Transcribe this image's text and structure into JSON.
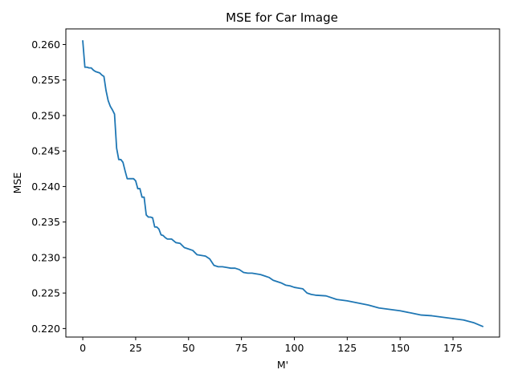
{
  "chart_data": {
    "type": "line",
    "title": "MSE for Car Image",
    "xlabel": "M'",
    "ylabel": "MSE",
    "xlim": [
      -8,
      197
    ],
    "ylim": [
      0.2188,
      0.2622
    ],
    "xticks": [
      0,
      25,
      50,
      75,
      100,
      125,
      150,
      175
    ],
    "xtick_labels": [
      "0",
      "25",
      "50",
      "75",
      "100",
      "125",
      "150",
      "175"
    ],
    "yticks": [
      0.22,
      0.225,
      0.23,
      0.235,
      0.24,
      0.245,
      0.25,
      0.255,
      0.26
    ],
    "ytick_labels": [
      "0.220",
      "0.225",
      "0.230",
      "0.235",
      "0.240",
      "0.245",
      "0.250",
      "0.255",
      "0.260"
    ],
    "grid": false,
    "series": [
      {
        "color": "#1f77b4",
        "x": [
          0,
          1,
          2,
          3,
          4,
          5,
          6,
          7,
          8,
          9,
          10,
          11,
          12,
          13,
          14,
          15,
          16,
          17,
          18,
          19,
          20,
          21,
          22,
          23,
          24,
          25,
          26,
          27,
          28,
          29,
          30,
          31,
          32,
          33,
          34,
          35,
          36,
          37,
          38,
          39,
          40,
          42,
          44,
          46,
          48,
          50,
          52,
          54,
          56,
          58,
          60,
          62,
          64,
          66,
          68,
          70,
          72,
          74,
          76,
          78,
          80,
          82,
          84,
          86,
          88,
          90,
          92,
          94,
          96,
          98,
          100,
          102,
          104,
          106,
          108,
          110,
          115,
          120,
          125,
          130,
          135,
          140,
          145,
          150,
          155,
          160,
          165,
          170,
          175,
          180,
          185,
          189
        ],
        "y": [
          0.2605,
          0.2568,
          0.2568,
          0.2567,
          0.2567,
          0.2564,
          0.2562,
          0.2561,
          0.256,
          0.2557,
          0.2555,
          0.2535,
          0.2521,
          0.2513,
          0.2508,
          0.2502,
          0.2454,
          0.2438,
          0.2438,
          0.2434,
          0.2422,
          0.2411,
          0.2411,
          0.2411,
          0.2411,
          0.2408,
          0.2397,
          0.2397,
          0.2385,
          0.2385,
          0.236,
          0.2357,
          0.2357,
          0.2356,
          0.2343,
          0.2343,
          0.234,
          0.2332,
          0.2331,
          0.2328,
          0.2326,
          0.2326,
          0.2321,
          0.232,
          0.2314,
          0.2312,
          0.231,
          0.2304,
          0.2303,
          0.2302,
          0.2298,
          0.2289,
          0.2287,
          0.2287,
          0.2286,
          0.2285,
          0.2285,
          0.2283,
          0.2279,
          0.2278,
          0.2278,
          0.2277,
          0.2276,
          0.2274,
          0.2272,
          0.2268,
          0.2266,
          0.2264,
          0.2261,
          0.226,
          0.2258,
          0.2257,
          0.2256,
          0.225,
          0.2248,
          0.2247,
          0.2246,
          0.2241,
          0.2239,
          0.2236,
          0.2233,
          0.2229,
          0.2227,
          0.2225,
          0.2222,
          0.2219,
          0.2218,
          0.2216,
          0.2214,
          0.2212,
          0.2208,
          0.2203
        ]
      }
    ]
  }
}
